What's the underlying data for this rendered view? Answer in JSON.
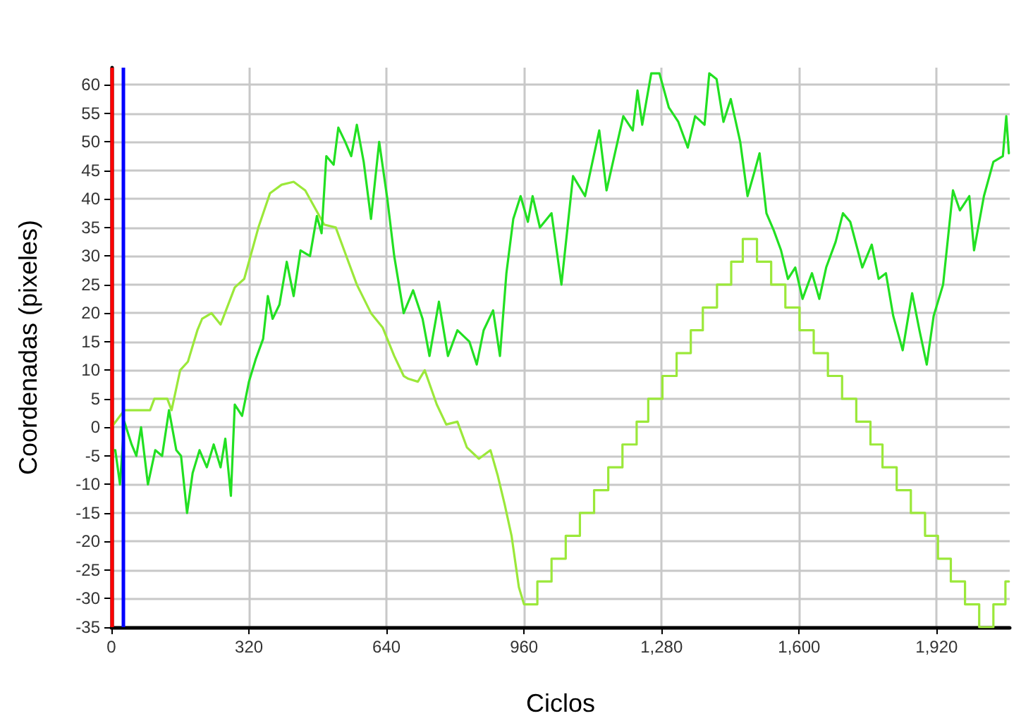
{
  "chart_data": {
    "type": "line",
    "xlabel": "Ciclos",
    "ylabel": "Coordenadas (pixeles)",
    "xlim": [
      0,
      2090
    ],
    "ylim": [
      -35,
      63
    ],
    "xticks": [
      0,
      320,
      640,
      960,
      {
        "value": 1280,
        "label": "1,280"
      },
      {
        "value": 1600,
        "label": "1,600"
      },
      {
        "value": 1920,
        "label": "1,920"
      }
    ],
    "yticks": [
      -35,
      -30,
      -25,
      -20,
      -15,
      -10,
      -5,
      0,
      5,
      10,
      15,
      20,
      25,
      30,
      35,
      40,
      45,
      50,
      55,
      60
    ],
    "grid": true,
    "marker": "none",
    "line_style": "solid",
    "ref_lines": [
      {
        "axis": "x",
        "value": 0,
        "color": "#ff0000"
      },
      {
        "axis": "x",
        "value": 26,
        "color": "#0000ff"
      }
    ],
    "series": [
      {
        "color": "#9be83a",
        "x": [
          0,
          20,
          30,
          60,
          90,
          100,
          130,
          140,
          160,
          178,
          200,
          211,
          233,
          254,
          287,
          309,
          342,
          369,
          396,
          424,
          451,
          473,
          495,
          522,
          544,
          571,
          604,
          631,
          658,
          680,
          691,
          713,
          729,
          757,
          779,
          805,
          827,
          855,
          882,
          899,
          915,
          931,
          948,
          960,
          991,
          991,
          1024,
          1024,
          1057,
          1057,
          1090,
          1090,
          1123,
          1123,
          1156,
          1156,
          1189,
          1189,
          1222,
          1222,
          1249,
          1249,
          1282,
          1282,
          1315,
          1315,
          1348,
          1348,
          1376,
          1376,
          1409,
          1409,
          1442,
          1442,
          1469,
          1469,
          1502,
          1502,
          1535,
          1535,
          1568,
          1568,
          1601,
          1601,
          1634,
          1634,
          1667,
          1667,
          1700,
          1700,
          1733,
          1733,
          1766,
          1766,
          1794,
          1794,
          1827,
          1827,
          1860,
          1860,
          1893,
          1893,
          1923,
          1923,
          1953,
          1953,
          1986,
          1986,
          2019,
          2019,
          2052,
          2052,
          2080,
          2080,
          2088
        ],
        "values": [
          0,
          2,
          3,
          3,
          3,
          5,
          5,
          3,
          10,
          11.5,
          17,
          19,
          20,
          18,
          24.5,
          26,
          35,
          41,
          42.5,
          43,
          41.5,
          38.5,
          35.5,
          35,
          30.5,
          25,
          20,
          17.5,
          12.5,
          9,
          8.5,
          8,
          10,
          4,
          0.5,
          1,
          -3.5,
          -5.5,
          -4,
          -8.5,
          -13.5,
          -19,
          -28,
          -31,
          -31,
          -27,
          -27,
          -23,
          -23,
          -19,
          -19,
          -15,
          -15,
          -11,
          -11,
          -7,
          -7,
          -3,
          -3,
          1,
          1,
          5,
          5,
          9,
          9,
          13,
          13,
          17,
          17,
          21,
          21,
          25,
          25,
          29,
          29,
          33,
          33,
          29,
          29,
          25,
          25,
          21,
          21,
          17,
          17,
          13,
          13,
          9,
          9,
          5,
          5,
          1,
          1,
          -3,
          -3,
          -7,
          -7,
          -11,
          -11,
          -15,
          -15,
          -19,
          -19,
          -23,
          -23,
          -27,
          -27,
          -31,
          -31,
          -35,
          -35,
          -31,
          -31,
          -27,
          -27
        ]
      },
      {
        "color": "#22e022",
        "x": [
          0,
          9,
          20,
          30,
          47,
          58,
          69,
          85,
          102,
          118,
          134,
          151,
          162,
          176,
          189,
          205,
          222,
          238,
          254,
          265,
          278,
          287,
          304,
          320,
          336,
          353,
          364,
          375,
          391,
          408,
          424,
          440,
          462,
          478,
          489,
          500,
          517,
          528,
          544,
          558,
          571,
          587,
          604,
          623,
          642,
          658,
          680,
          702,
          724,
          740,
          762,
          783,
          805,
          833,
          850,
          866,
          888,
          904,
          919,
          935,
          952,
          969,
          980,
          997,
          1024,
          1047,
          1074,
          1102,
          1135,
          1152,
          1191,
          1213,
          1224,
          1235,
          1256,
          1275,
          1297,
          1319,
          1341,
          1358,
          1380,
          1391,
          1408,
          1424,
          1441,
          1463,
          1480,
          1497,
          1508,
          1524,
          1541,
          1558,
          1574,
          1591,
          1608,
          1630,
          1647,
          1663,
          1685,
          1702,
          1719,
          1747,
          1769,
          1785,
          1802,
          1819,
          1841,
          1863,
          1880,
          1897,
          1913,
          1935,
          1958,
          1974,
          1996,
          2007,
          2030,
          2052,
          2074,
          2082,
          2088
        ],
        "values": [
          -4,
          -4,
          -10,
          1,
          -3,
          -5,
          0,
          -10,
          -4,
          -5,
          3,
          -4,
          -5,
          -15,
          -8,
          -4,
          -7,
          -3,
          -7,
          -2,
          -12,
          4,
          2,
          8,
          12,
          15.5,
          23,
          19,
          21.5,
          29,
          23,
          31,
          30,
          37,
          34,
          47.5,
          46,
          52.5,
          50,
          47.5,
          53,
          46.5,
          36.5,
          50,
          40,
          30,
          20,
          24,
          19,
          12.5,
          22,
          12.5,
          17,
          15,
          11,
          17,
          20.5,
          12.5,
          27,
          36.5,
          40.5,
          36,
          40.5,
          35,
          37.5,
          25,
          44,
          40.5,
          52,
          41.5,
          54.5,
          52,
          59,
          53,
          62,
          62,
          56,
          53.5,
          49,
          54.5,
          53,
          62,
          61,
          53.5,
          57.5,
          50,
          40.5,
          45,
          48,
          37.5,
          34.5,
          31,
          26,
          28,
          22.5,
          27,
          22.5,
          28,
          32.5,
          37.5,
          36,
          28,
          32,
          26,
          27,
          19.5,
          13.5,
          23.5,
          17,
          11,
          19.5,
          25,
          41.5,
          38,
          40.5,
          31,
          40.5,
          46.5,
          47.5,
          54.5,
          48
        ]
      }
    ]
  }
}
